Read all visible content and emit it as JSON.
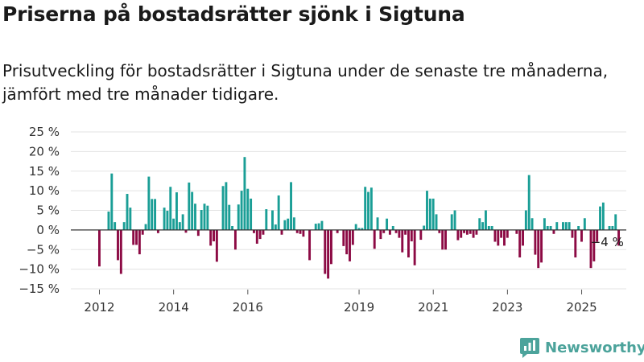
{
  "header": {
    "title": "Priserna på bostadsrätter sjönk i Sigtuna",
    "subtitle": "Prisutveckling för bostadsrätter i Sigtuna under de senaste tre månaderna, jämfört med tre månader tidigare."
  },
  "brand": {
    "name": "Newsworthy",
    "icon": "newsworthy-logo-icon",
    "color": "#4ca39b"
  },
  "chart_data": {
    "type": "bar",
    "title": "",
    "xlabel": "",
    "ylabel": "",
    "ylim": [
      -15,
      25
    ],
    "y_ticks": [
      -15,
      -10,
      -5,
      0,
      5,
      10,
      15,
      20,
      25
    ],
    "y_tick_labels": [
      "−15 %",
      "−10 %",
      "−5 %",
      "0 %",
      "5 %",
      "10 %",
      "15 %",
      "20 %",
      "25 %"
    ],
    "x_start": "2012-01",
    "x_tick_labels": [
      {
        "month": "2012-01",
        "label": "2012"
      },
      {
        "month": "2014-01",
        "label": "2014"
      },
      {
        "month": "2016-01",
        "label": "2016"
      },
      {
        "month": "2019-01",
        "label": "2019"
      },
      {
        "month": "2021-01",
        "label": "2021"
      },
      {
        "month": "2023-01",
        "label": "2023"
      },
      {
        "month": "2025-01",
        "label": "2025"
      }
    ],
    "grid": true,
    "legend": "none",
    "colors": {
      "positive": "#1a9e96",
      "negative": "#8c0a44",
      "grid": "#e3e3e3",
      "zero_line": "#333333"
    },
    "annotation": {
      "text": "−4 %",
      "month": "2025-09"
    },
    "series": [
      {
        "values": [
          -9.3,
          0,
          0,
          4.7,
          14.4,
          2,
          -7.7,
          -11.2,
          2,
          9.2,
          5.7,
          -3.8,
          -3.8,
          -6.2,
          -1.2,
          1.5,
          13.6,
          7.9,
          7.9,
          -0.8,
          0,
          5.7,
          4.9,
          11,
          2.9,
          9.6,
          2,
          4,
          -0.7,
          12.1,
          9.7,
          6.7,
          -1.5,
          5.1,
          6.7,
          6.2,
          -4,
          -2.9,
          -8.1,
          0,
          11.2,
          12.2,
          6.4,
          1,
          -5,
          6.5,
          10,
          18.6,
          10.5,
          8,
          -0.8,
          -3.5,
          -2.3,
          -1.2,
          5.3,
          0,
          5,
          1.4,
          8.8,
          -1.2,
          2.5,
          2.9,
          12.2,
          3.2,
          -0.8,
          -1,
          -1.7,
          0,
          -7.7,
          0,
          1.6,
          1.7,
          2.3,
          -11.2,
          -12.4,
          -8.7,
          0,
          -0.8,
          0,
          -4.1,
          -6.2,
          -8,
          -3.8,
          1.5,
          0.5,
          0.5,
          11,
          9.7,
          10.8,
          -4.8,
          3.2,
          -2.3,
          -0.8,
          2.9,
          -1.2,
          1,
          -0.8,
          -2,
          -5.7,
          -1.2,
          -7,
          -2.9,
          -9,
          0,
          -2.5,
          1.1,
          10,
          8,
          8,
          4,
          -0.8,
          -5,
          -5,
          0,
          4,
          5,
          -2.6,
          -2,
          -0.8,
          -1.2,
          -1,
          -2,
          -1.2,
          3,
          2,
          5,
          1,
          1,
          -3,
          -4,
          -2,
          -4,
          -2,
          0,
          0,
          -1,
          -7,
          -4,
          5,
          14,
          3,
          -6.3,
          -9.7,
          -8.3,
          3,
          1,
          1,
          -1,
          2,
          0,
          2,
          2,
          2,
          -2,
          -7,
          1,
          -3,
          3,
          0,
          -9.7,
          -8,
          -3,
          6,
          7,
          0,
          1,
          1,
          4,
          -4
        ]
      }
    ]
  }
}
